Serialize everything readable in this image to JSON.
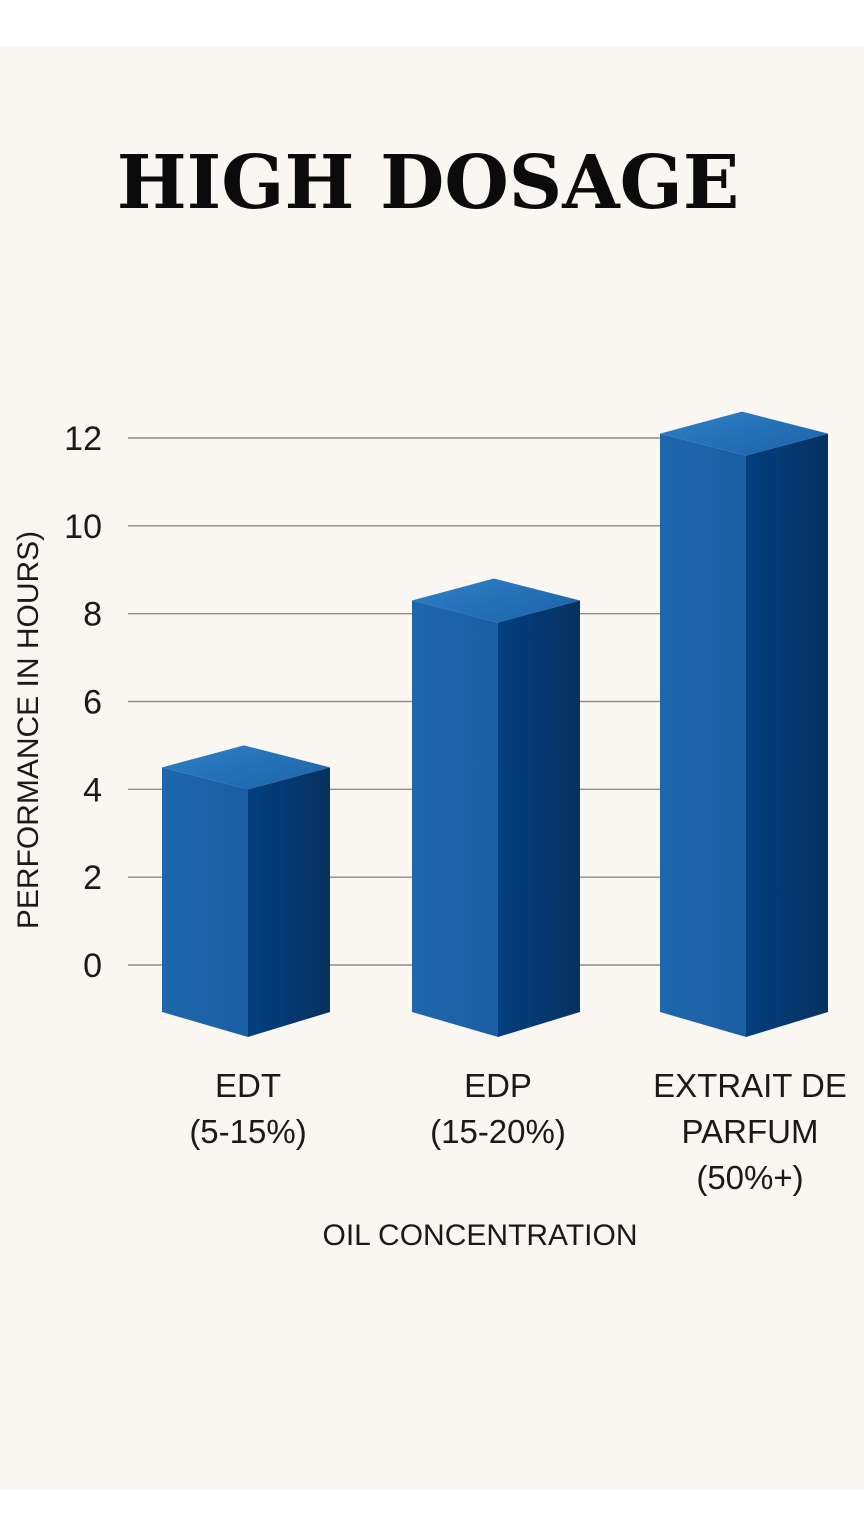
{
  "chart_data": {
    "type": "bar",
    "title": "HIGH DOSAGE",
    "xlabel": "OIL CONCENTRATION",
    "ylabel": "PERFORMANCE IN HOURS)",
    "categories": [
      [
        "EDT",
        "(5-15%)"
      ],
      [
        "EDP",
        "(15-20%)"
      ],
      [
        "EXTRAIT DE",
        "PARFUM",
        "(50%+)"
      ]
    ],
    "values": [
      4.5,
      8.3,
      12.1
    ],
    "yticks": [
      0,
      2,
      4,
      6,
      8,
      10,
      12
    ],
    "ylim": [
      0,
      12
    ],
    "grid": true,
    "legend": "none",
    "colors": {
      "front_light": "#1f67ad",
      "front_mid": "#1a5ea3",
      "side_dark": "#043f80",
      "side_darkest": "#06315f",
      "top_light": "#2f80c8",
      "top_dark": "#1b62a6",
      "background": "#faf7f3"
    }
  }
}
